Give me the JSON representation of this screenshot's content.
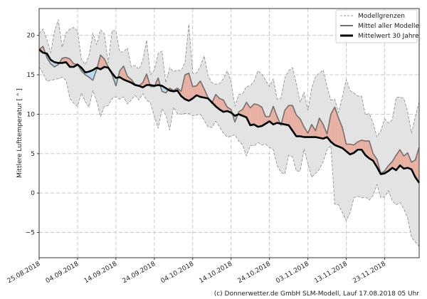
{
  "chart_data": {
    "type": "line",
    "ylabel": "Mittlere Lufttemperatur [ ° ]",
    "xlabel": "",
    "start_date": "25.08.2018",
    "x_days": "0..99 (daily)",
    "xlim": [
      0,
      99
    ],
    "ylim": [
      -8.2,
      23.4
    ],
    "grid": true,
    "legend_position": "top-right",
    "x_tick_days": [
      0,
      10,
      20,
      30,
      40,
      50,
      60,
      70,
      80,
      90
    ],
    "x_tick_labels": [
      "25.08.2018",
      "04.09.2018",
      "14.09.2018",
      "24.09.2018",
      "04.10.2018",
      "14.10.2018",
      "24.10.2018",
      "03.11.2018",
      "13.11.2018",
      "23.11.2018"
    ],
    "y_ticks": [
      -5,
      0,
      5,
      10,
      15,
      20
    ],
    "y_tick_labels": [
      "−5",
      "0",
      "5",
      "10",
      "15",
      "20"
    ],
    "legend": [
      "Modellgrenzen",
      "Mittel aller Modelle",
      "Mittelwert 30 Jahre"
    ],
    "series": [
      {
        "name": "Modellgrenzen (oben)",
        "values": [
          20.2,
          20.8,
          19.5,
          17.8,
          20.5,
          22.0,
          18.5,
          20.3,
          20.8,
          21.0,
          20.6,
          17.0,
          16.3,
          17.5,
          20.3,
          18.8,
          20.7,
          20.2,
          16.5,
          20.6,
          20.6,
          17.9,
          17.9,
          18.4,
          16.0,
          16.2,
          15.7,
          16.8,
          19.4,
          15.0,
          15.6,
          17.7,
          18.0,
          14.0,
          15.9,
          15.4,
          15.6,
          15.5,
          16.6,
          21.4,
          15.2,
          15.2,
          16.1,
          17.4,
          14.9,
          14.0,
          13.8,
          13.9,
          14.5,
          15.5,
          14.1,
          11.0,
          12.5,
          12.6,
          13.5,
          13.6,
          14.2,
          15.5,
          15.1,
          14.3,
          13.5,
          14.5,
          11.9,
          12.0,
          14.6,
          15.5,
          15.9,
          13.9,
          11.5,
          12.8,
          10.5,
          13.3,
          14.8,
          15.2,
          15.6,
          13.5,
          11.8,
          11.9,
          10.2,
          12.2,
          14.4,
          13.0,
          12.7,
          12.3,
          12.3,
          9.9,
          10.1,
          8.9,
          7.1,
          7.9,
          9.4,
          8.9,
          9.3,
          12.1,
          12.2,
          12.0,
          10.3,
          7.6,
          9.7,
          11.6
        ]
      },
      {
        "name": "Modellgrenzen (unten)",
        "values": [
          16.0,
          15.2,
          14.2,
          14.3,
          14.4,
          14.5,
          14.7,
          14.3,
          12.0,
          11.4,
          11.0,
          12.7,
          11.6,
          10.9,
          13.0,
          11.6,
          9.7,
          11.0,
          11.1,
          12.0,
          12.2,
          11.9,
          12.2,
          11.3,
          11.8,
          12.4,
          11.8,
          12.6,
          11.8,
          11.4,
          9.8,
          8.2,
          10.7,
          9.9,
          8.0,
          10.9,
          10.1,
          10.0,
          10.1,
          10.1,
          9.8,
          9.9,
          10.0,
          9.2,
          8.4,
          8.3,
          9.1,
          8.4,
          7.6,
          7.1,
          7.2,
          7.4,
          6.6,
          6.1,
          4.7,
          6.0,
          6.0,
          6.4,
          6.1,
          6.2,
          5.8,
          5.5,
          3.5,
          2.6,
          2.4,
          4.8,
          4.6,
          2.8,
          2.8,
          5.6,
          3.7,
          2.0,
          2.5,
          3.0,
          4.0,
          5.5,
          6.0,
          -1.4,
          -1.5,
          -2.5,
          -3.5,
          -2.5,
          -0.6,
          -0.4,
          -0.6,
          -0.5,
          -0.9,
          -0.3,
          1.1,
          -0.6,
          -0.5,
          0.3,
          -1.0,
          -1.5,
          -1.2,
          -2.0,
          -3.2,
          -5.6,
          -6.2,
          -6.8
        ]
      },
      {
        "name": "Mittel aller Modelle",
        "values": [
          18.2,
          18.6,
          17.2,
          16.4,
          16.0,
          16.3,
          17.1,
          17.2,
          17.0,
          16.4,
          16.3,
          15.5,
          15.0,
          14.7,
          14.3,
          15.7,
          17.5,
          17.0,
          16.0,
          15.0,
          13.6,
          15.5,
          16.1,
          14.8,
          14.4,
          13.8,
          13.6,
          14.0,
          15.1,
          13.5,
          13.5,
          14.6,
          12.9,
          12.7,
          13.3,
          13.0,
          13.3,
          12.9,
          15.0,
          15.2,
          13.5,
          13.6,
          14.2,
          13.2,
          12.1,
          11.4,
          12.5,
          12.0,
          11.8,
          10.9,
          10.6,
          9.0,
          10.3,
          10.6,
          11.5,
          10.8,
          11.3,
          11.2,
          10.9,
          9.7,
          9.7,
          11.0,
          9.7,
          8.6,
          10.5,
          11.1,
          11.1,
          9.9,
          9.4,
          8.4,
          7.6,
          8.7,
          7.9,
          9.5,
          8.7,
          7.5,
          10.0,
          10.9,
          9.5,
          8.3,
          6.2,
          6.2,
          6.1,
          6.5,
          6.7,
          6.6,
          6.6,
          5.0,
          4.3,
          2.5,
          2.8,
          3.5,
          4.0,
          4.8,
          5.5,
          4.7,
          5.1,
          3.9,
          4.2,
          5.8
        ]
      },
      {
        "name": "Mittelwert 30 Jahre",
        "values": [
          18.2,
          17.8,
          17.7,
          16.9,
          16.6,
          16.5,
          16.5,
          16.6,
          16.0,
          16.0,
          16.3,
          15.9,
          15.3,
          15.4,
          15.6,
          15.9,
          15.7,
          16.0,
          15.9,
          15.2,
          14.6,
          14.7,
          14.4,
          14.2,
          14.0,
          13.7,
          13.6,
          13.4,
          13.7,
          13.7,
          13.6,
          13.7,
          13.6,
          13.3,
          13.0,
          12.9,
          13.0,
          12.3,
          11.9,
          11.7,
          12.0,
          12.4,
          12.2,
          12.1,
          12.0,
          11.5,
          11.0,
          10.6,
          10.3,
          10.4,
          10.2,
          9.8,
          10.0,
          9.8,
          9.6,
          8.6,
          8.7,
          8.4,
          8.5,
          8.8,
          9.1,
          8.7,
          8.9,
          8.8,
          8.7,
          8.6,
          7.9,
          7.2,
          7.2,
          7.1,
          7.1,
          7.1,
          7.1,
          7.0,
          6.9,
          7.1,
          6.5,
          6.1,
          5.9,
          5.7,
          5.3,
          4.9,
          5.1,
          5.5,
          5.5,
          4.8,
          4.4,
          4.1,
          3.3,
          2.4,
          2.5,
          2.8,
          3.2,
          2.9,
          3.5,
          3.1,
          3.2,
          3.0,
          2.0,
          1.3
        ]
      }
    ],
    "colors": {
      "band": "#e3e3e3",
      "band_edge": "#8a8a8a",
      "model_mean": "#707070",
      "climate_mean": "#000000",
      "above": "#e8b0a2",
      "below": "#b8dcea"
    },
    "footer": "(c) Donnerwetter.de GmbH SLM-Modell, Lauf 17.08.2018 05 Uhr"
  }
}
